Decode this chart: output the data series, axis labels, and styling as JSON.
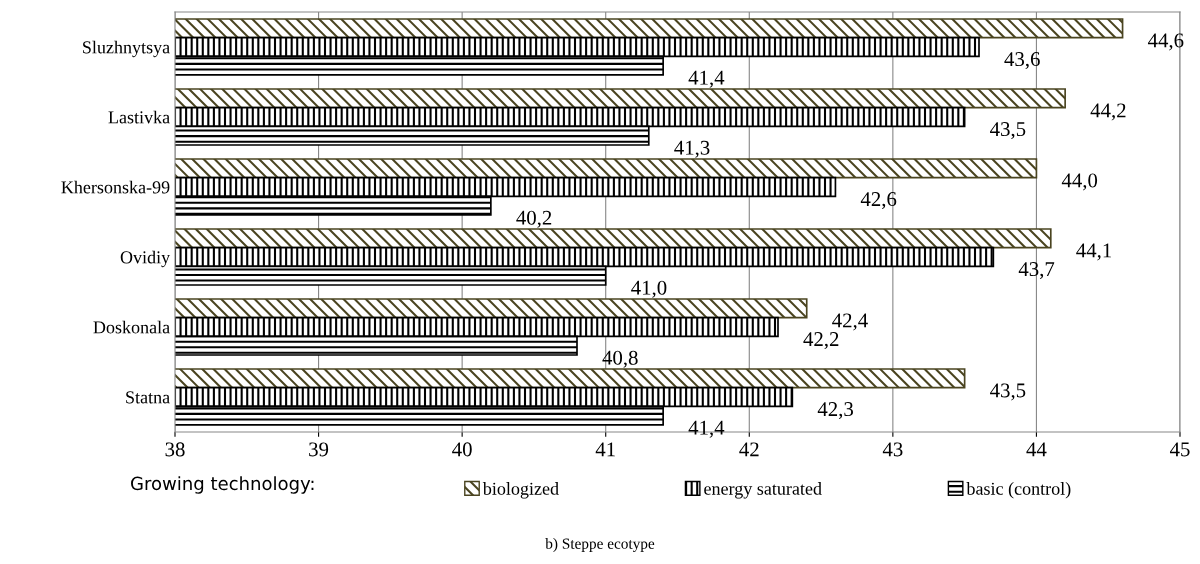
{
  "chart_data": {
    "type": "bar",
    "orientation": "horizontal",
    "categories": [
      "Sluzhnytsya",
      "Lastivka",
      "Khersonska-99",
      "Ovidiy",
      "Doskonala",
      "Statna"
    ],
    "series": [
      {
        "name": "biologized",
        "color": "#4a4420",
        "values": [
          44.6,
          44.2,
          44.0,
          44.1,
          42.4,
          43.5
        ],
        "value_labels": [
          "44,6",
          "44,2",
          "44,0",
          "44,1",
          "42,4",
          "43,5"
        ]
      },
      {
        "name": "energy saturated",
        "color": "#000000",
        "values": [
          43.6,
          43.5,
          42.6,
          43.7,
          42.2,
          42.3
        ],
        "value_labels": [
          "43,6",
          "43,5",
          "42,6",
          "43,7",
          "42,2",
          "42,3"
        ]
      },
      {
        "name": "basic (control)",
        "color": "#000000",
        "values": [
          41.4,
          41.3,
          40.2,
          41.0,
          40.8,
          41.4
        ],
        "value_labels": [
          "41,4",
          "41,3",
          "40,2",
          "41,0",
          "40,8",
          "41,4"
        ]
      }
    ],
    "xlim": [
      38,
      45
    ],
    "xticks": [
      38,
      39,
      40,
      41,
      42,
      43,
      44,
      45
    ],
    "grid": "x",
    "legend": "bottom",
    "legend_title": "Growing technology:",
    "annotations": [
      "b) Steppe ecotype"
    ]
  }
}
